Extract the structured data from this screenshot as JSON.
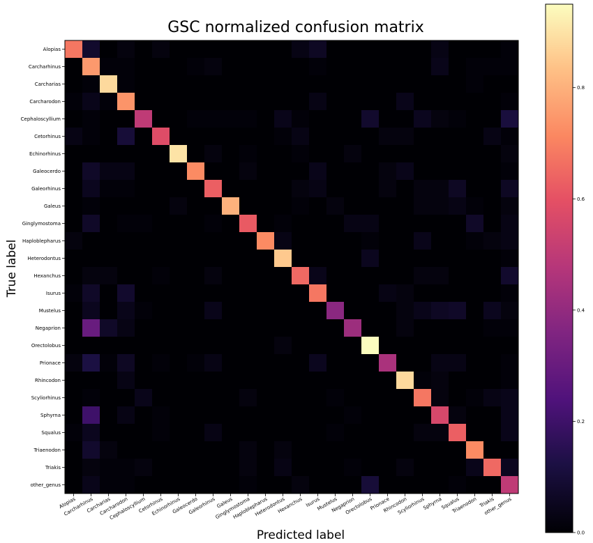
{
  "chart_data": {
    "type": "heatmap",
    "title": "GSC normalized confusion matrix",
    "xlabel": "Predicted label",
    "ylabel": "True label",
    "labels": [
      "Alopias",
      "Carcharhinus",
      "Carcharias",
      "Carcharodon",
      "Cephaloscyllium",
      "Cetorhinus",
      "Echinorhinus",
      "Galeocerdo",
      "Galeorhinus",
      "Galeus",
      "Ginglymostoma",
      "Haploblepharus",
      "Heterodontus",
      "Hexanchus",
      "Isurus",
      "Mustelus",
      "Negaprion",
      "Orectolobus",
      "Prionace",
      "Rhincodon",
      "Scyliorhinus",
      "Sphyrna",
      "Squalus",
      "Triaenodon",
      "Triakis",
      "other_genus"
    ],
    "matrix": [
      [
        0.68,
        0.08,
        0,
        0.02,
        0,
        0.02,
        0,
        0,
        0,
        0,
        0,
        0,
        0,
        0.03,
        0.06,
        0,
        0,
        0,
        0,
        0,
        0,
        0.03,
        0,
        0,
        0,
        0.01
      ],
      [
        0,
        0.75,
        0.01,
        0.01,
        0,
        0,
        0,
        0.01,
        0.02,
        0,
        0,
        0,
        0,
        0,
        0.01,
        0,
        0,
        0,
        0,
        0,
        0,
        0.04,
        0,
        0.01,
        0.01,
        0.01
      ],
      [
        0,
        0.01,
        0.88,
        0.01,
        0,
        0,
        0,
        0,
        0,
        0,
        0,
        0,
        0,
        0,
        0,
        0,
        0,
        0,
        0,
        0,
        0,
        0,
        0,
        0.01,
        0,
        0
      ],
      [
        0.01,
        0.04,
        0.01,
        0.74,
        0,
        0,
        0,
        0,
        0,
        0,
        0,
        0,
        0,
        0,
        0.03,
        0,
        0,
        0,
        0,
        0.04,
        0,
        0,
        0,
        0,
        0,
        0.01
      ],
      [
        0,
        0.01,
        0,
        0,
        0.5,
        0,
        0,
        0.01,
        0.01,
        0.01,
        0.01,
        0,
        0.04,
        0.01,
        0,
        0,
        0,
        0.08,
        0,
        0,
        0.05,
        0.02,
        0.01,
        0,
        0,
        0.11
      ],
      [
        0.03,
        0.01,
        0,
        0.1,
        0,
        0.58,
        0,
        0,
        0,
        0,
        0,
        0,
        0.01,
        0.03,
        0,
        0,
        0,
        0,
        0.02,
        0.02,
        0,
        0,
        0,
        0,
        0.03,
        0.01
      ],
      [
        0,
        0,
        0,
        0,
        0,
        0,
        0.9,
        0,
        0.02,
        0,
        0.01,
        0,
        0,
        0.01,
        0,
        0,
        0.02,
        0,
        0,
        0,
        0,
        0,
        0,
        0,
        0,
        0.02
      ],
      [
        0,
        0.07,
        0.03,
        0.03,
        0,
        0,
        0,
        0.72,
        0,
        0,
        0.02,
        0,
        0,
        0,
        0.04,
        0,
        0,
        0,
        0.02,
        0.04,
        0,
        0,
        0,
        0,
        0,
        0.01
      ],
      [
        0,
        0.05,
        0.01,
        0.01,
        0,
        0,
        0,
        0,
        0.63,
        0,
        0,
        0,
        0,
        0.02,
        0.03,
        0,
        0,
        0,
        0.02,
        0,
        0.02,
        0.02,
        0.06,
        0,
        0,
        0.06
      ],
      [
        0,
        0.01,
        0,
        0,
        0,
        0,
        0.02,
        0,
        0,
        0.8,
        0,
        0,
        0,
        0.01,
        0,
        0.02,
        0,
        0,
        0,
        0,
        0.02,
        0.02,
        0.03,
        0.01,
        0,
        0.02
      ],
      [
        0,
        0.07,
        0,
        0.01,
        0.01,
        0,
        0,
        0,
        0.01,
        0,
        0.62,
        0,
        0.01,
        0,
        0,
        0,
        0.03,
        0.03,
        0,
        0,
        0,
        0,
        0,
        0.07,
        0,
        0.03
      ],
      [
        0.02,
        0,
        0,
        0,
        0,
        0,
        0,
        0,
        0,
        0,
        0,
        0.72,
        0.03,
        0,
        0,
        0,
        0,
        0.01,
        0,
        0,
        0.04,
        0,
        0,
        0.01,
        0.02,
        0.03
      ],
      [
        0,
        0,
        0,
        0,
        0,
        0,
        0,
        0,
        0,
        0,
        0,
        0,
        0.85,
        0,
        0,
        0,
        0,
        0.05,
        0,
        0,
        0,
        0,
        0,
        0,
        0,
        0.01
      ],
      [
        0,
        0.02,
        0.02,
        0,
        0,
        0.01,
        0,
        0,
        0.02,
        0,
        0,
        0,
        0,
        0.65,
        0.04,
        0,
        0,
        0,
        0,
        0,
        0.02,
        0.02,
        0,
        0,
        0,
        0.08
      ],
      [
        0.01,
        0.07,
        0,
        0.08,
        0,
        0,
        0,
        0,
        0,
        0,
        0,
        0,
        0,
        0,
        0.68,
        0,
        0,
        0,
        0.03,
        0.02,
        0,
        0,
        0,
        0,
        0,
        0.01
      ],
      [
        0,
        0.05,
        0,
        0.04,
        0.01,
        0,
        0,
        0,
        0.04,
        0,
        0,
        0,
        0,
        0,
        0,
        0.38,
        0,
        0,
        0,
        0.02,
        0.04,
        0.06,
        0.07,
        0,
        0.05,
        0.02
      ],
      [
        0,
        0.3,
        0.07,
        0.03,
        0,
        0,
        0,
        0,
        0,
        0,
        0,
        0,
        0,
        0,
        0,
        0,
        0.42,
        0,
        0,
        0.02,
        0,
        0,
        0,
        0,
        0.01,
        0.01
      ],
      [
        0,
        0,
        0,
        0,
        0,
        0,
        0,
        0,
        0,
        0,
        0,
        0,
        0.02,
        0,
        0,
        0,
        0,
        0.95,
        0,
        0,
        0,
        0,
        0,
        0,
        0,
        0
      ],
      [
        0.02,
        0.12,
        0.01,
        0.06,
        0,
        0.01,
        0,
        0.01,
        0.03,
        0,
        0,
        0,
        0,
        0,
        0.05,
        0,
        0,
        0,
        0.45,
        0,
        0,
        0.03,
        0.03,
        0,
        0,
        0.01
      ],
      [
        0,
        0,
        0,
        0.03,
        0,
        0,
        0,
        0,
        0,
        0,
        0,
        0,
        0,
        0,
        0,
        0,
        0,
        0,
        0,
        0.88,
        0.01,
        0.02,
        0,
        0,
        0,
        0.01
      ],
      [
        0,
        0.01,
        0,
        0,
        0.04,
        0,
        0,
        0,
        0,
        0,
        0.02,
        0,
        0,
        0,
        0,
        0.01,
        0,
        0,
        0,
        0,
        0.68,
        0.02,
        0,
        0.01,
        0.03,
        0.04
      ],
      [
        0,
        0.2,
        0,
        0.03,
        0,
        0.01,
        0,
        0,
        0,
        0,
        0,
        0,
        0,
        0,
        0,
        0,
        0.01,
        0,
        0,
        0,
        0,
        0.56,
        0.02,
        0,
        0,
        0.04
      ],
      [
        0.01,
        0.05,
        0,
        0,
        0,
        0.01,
        0,
        0,
        0.03,
        0,
        0,
        0,
        0,
        0,
        0,
        0.01,
        0,
        0,
        0,
        0,
        0.02,
        0.02,
        0.63,
        0,
        0,
        0.04
      ],
      [
        0,
        0.08,
        0.02,
        0,
        0,
        0,
        0,
        0,
        0,
        0,
        0.02,
        0,
        0.02,
        0,
        0,
        0,
        0,
        0,
        0,
        0,
        0,
        0,
        0,
        0.72,
        0,
        0
      ],
      [
        0,
        0.02,
        0.01,
        0.01,
        0.02,
        0,
        0,
        0,
        0,
        0,
        0.02,
        0,
        0.03,
        0,
        0,
        0,
        0.01,
        0,
        0,
        0.02,
        0,
        0,
        0,
        0.04,
        0.65,
        0.05
      ],
      [
        0,
        0.04,
        0.01,
        0.01,
        0,
        0,
        0,
        0,
        0,
        0,
        0.01,
        0,
        0,
        0.02,
        0,
        0,
        0,
        0.1,
        0,
        0,
        0,
        0,
        0.01,
        0,
        0,
        0.5
      ]
    ],
    "colormap": "magma",
    "zlim": [
      0.0,
      0.95
    ],
    "colorbar_ticks": [
      "0.0",
      "0.2",
      "0.4",
      "0.6",
      "0.8"
    ],
    "colorbar_tick_values": [
      0.0,
      0.2,
      0.4,
      0.6,
      0.8
    ]
  }
}
